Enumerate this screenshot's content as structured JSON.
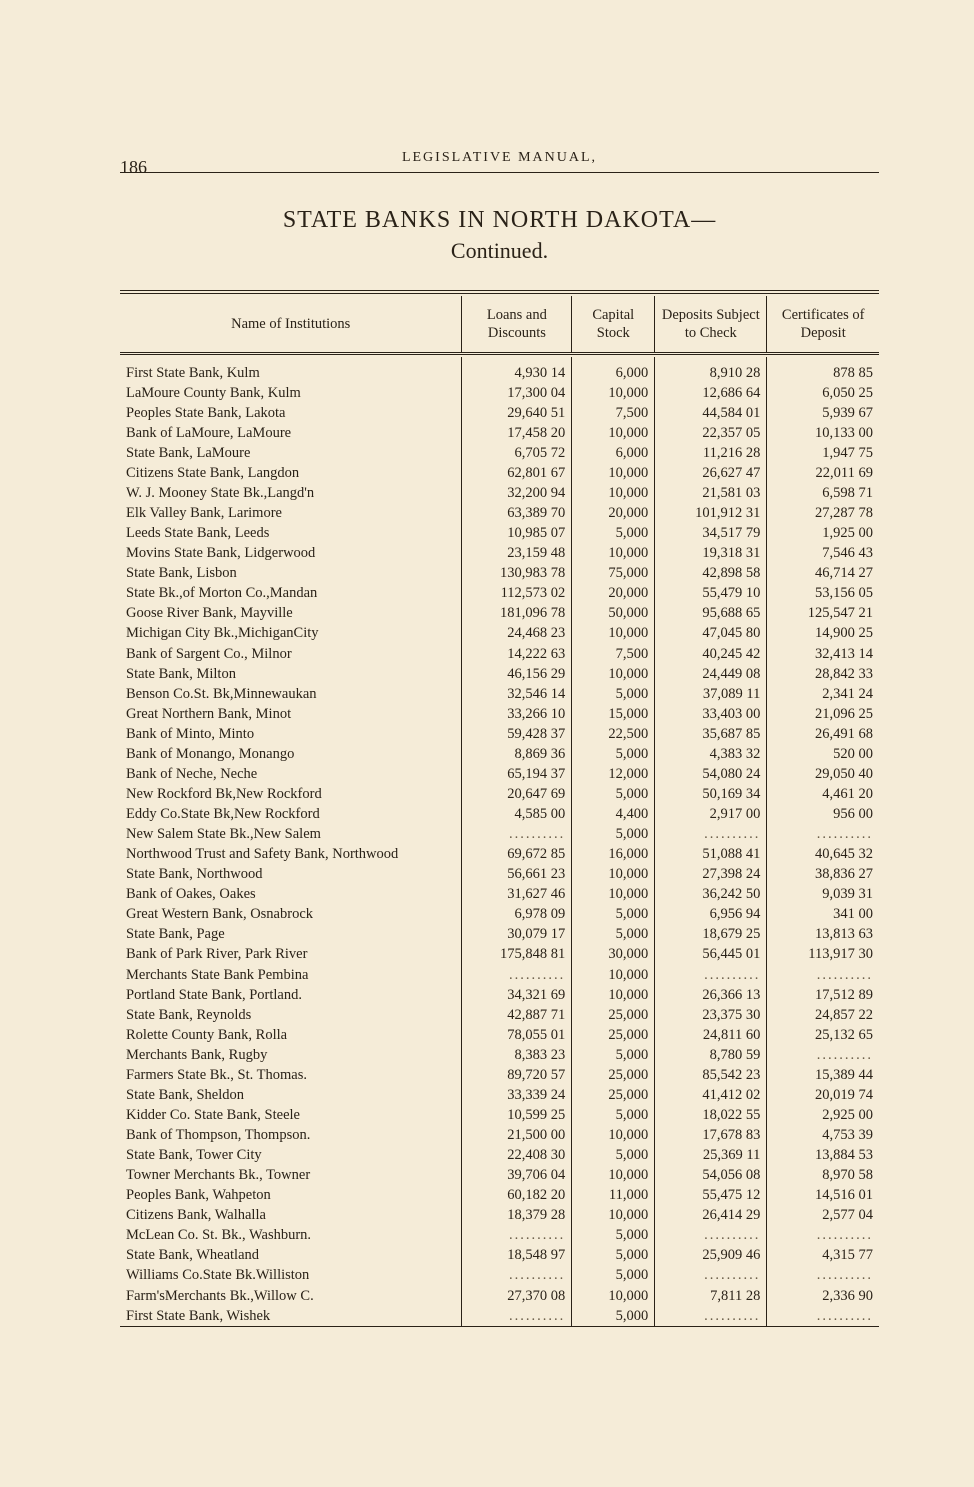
{
  "page_number": "186",
  "running_head": "LEGISLATIVE MANUAL,",
  "title": "STATE BANKS IN NORTH DAKOTA—",
  "subtitle": "Continued.",
  "columns": {
    "name": "Name of Institutions",
    "loans": "Loans and Discounts",
    "capital": "Capital Stock",
    "deposits": "Deposits Subject to Check",
    "certificates": "Certificates of Deposit"
  },
  "rows": [
    {
      "name": "First State Bank, Kulm",
      "loans": "4,930 14",
      "cap": "6,000",
      "dep": "8,910 28",
      "cert": "878 85"
    },
    {
      "name": "LaMoure County Bank, Kulm",
      "loans": "17,300 04",
      "cap": "10,000",
      "dep": "12,686 64",
      "cert": "6,050 25"
    },
    {
      "name": "Peoples State Bank, Lakota",
      "loans": "29,640 51",
      "cap": "7,500",
      "dep": "44,584 01",
      "cert": "5,939 67"
    },
    {
      "name": "Bank of LaMoure, LaMoure",
      "loans": "17,458 20",
      "cap": "10,000",
      "dep": "22,357 05",
      "cert": "10,133 00"
    },
    {
      "name": "State Bank, LaMoure",
      "loans": "6,705 72",
      "cap": "6,000",
      "dep": "11,216 28",
      "cert": "1,947 75"
    },
    {
      "name": "Citizens State Bank, Langdon",
      "loans": "62,801 67",
      "cap": "10,000",
      "dep": "26,627 47",
      "cert": "22,011 69"
    },
    {
      "name": "W. J. Mooney State Bk.,Langd'n",
      "loans": "32,200 94",
      "cap": "10,000",
      "dep": "21,581 03",
      "cert": "6,598 71"
    },
    {
      "name": "Elk Valley Bank, Larimore",
      "loans": "63,389 70",
      "cap": "20,000",
      "dep": "101,912 31",
      "cert": "27,287 78"
    },
    {
      "name": "Leeds State Bank, Leeds",
      "loans": "10,985 07",
      "cap": "5,000",
      "dep": "34,517 79",
      "cert": "1,925 00"
    },
    {
      "name": "Movins State Bank, Lidgerwood",
      "loans": "23,159 48",
      "cap": "10,000",
      "dep": "19,318 31",
      "cert": "7,546 43"
    },
    {
      "name": "State Bank, Lisbon",
      "loans": "130,983 78",
      "cap": "75,000",
      "dep": "42,898 58",
      "cert": "46,714 27"
    },
    {
      "name": "State Bk.,of Morton Co.,Mandan",
      "loans": "112,573 02",
      "cap": "20,000",
      "dep": "55,479 10",
      "cert": "53,156 05"
    },
    {
      "name": "Goose River Bank, Mayville",
      "loans": "181,096 78",
      "cap": "50,000",
      "dep": "95,688 65",
      "cert": "125,547 21"
    },
    {
      "name": "Michigan City Bk.,MichiganCity",
      "loans": "24,468 23",
      "cap": "10,000",
      "dep": "47,045 80",
      "cert": "14,900 25"
    },
    {
      "name": "Bank of Sargent Co., Milnor",
      "loans": "14,222 63",
      "cap": "7,500",
      "dep": "40,245 42",
      "cert": "32,413 14"
    },
    {
      "name": "State Bank, Milton",
      "loans": "46,156 29",
      "cap": "10,000",
      "dep": "24,449 08",
      "cert": "28,842 33"
    },
    {
      "name": "Benson Co.St. Bk,Minnewaukan",
      "loans": "32,546 14",
      "cap": "5,000",
      "dep": "37,089 11",
      "cert": "2,341 24"
    },
    {
      "name": "Great Northern Bank, Minot",
      "loans": "33,266 10",
      "cap": "15,000",
      "dep": "33,403 00",
      "cert": "21,096 25"
    },
    {
      "name": "Bank of Minto, Minto",
      "loans": "59,428 37",
      "cap": "22,500",
      "dep": "35,687 85",
      "cert": "26,491 68"
    },
    {
      "name": "Bank of Monango, Monango",
      "loans": "8,869 36",
      "cap": "5,000",
      "dep": "4,383 32",
      "cert": "520 00"
    },
    {
      "name": "Bank of Neche, Neche",
      "loans": "65,194 37",
      "cap": "12,000",
      "dep": "54,080 24",
      "cert": "29,050 40"
    },
    {
      "name": "New Rockford Bk,New Rockford",
      "loans": "20,647 69",
      "cap": "5,000",
      "dep": "50,169 34",
      "cert": "4,461 20"
    },
    {
      "name": "Eddy Co.State Bk,New Rockford",
      "loans": "4,585 00",
      "cap": "4,400",
      "dep": "2,917 00",
      "cert": "956 00"
    },
    {
      "name": "New Salem State Bk.,New Salem",
      "loans": "..........",
      "cap": "5,000",
      "dep": "..........",
      "cert": ".........."
    },
    {
      "name": "Northwood Trust and Safety Bank, Northwood",
      "indent": true,
      "loans": "69,672 85",
      "cap": "16,000",
      "dep": "51,088 41",
      "cert": "40,645 32"
    },
    {
      "name": "State Bank, Northwood",
      "loans": "56,661 23",
      "cap": "10,000",
      "dep": "27,398 24",
      "cert": "38,836 27"
    },
    {
      "name": "Bank of Oakes, Oakes",
      "loans": "31,627 46",
      "cap": "10,000",
      "dep": "36,242 50",
      "cert": "9,039 31"
    },
    {
      "name": "Great Western Bank, Osnabrock",
      "loans": "6,978 09",
      "cap": "5,000",
      "dep": "6,956 94",
      "cert": "341 00"
    },
    {
      "name": "State Bank, Page",
      "loans": "30,079 17",
      "cap": "5,000",
      "dep": "18,679 25",
      "cert": "13,813 63"
    },
    {
      "name": "Bank of Park River, Park River",
      "loans": "175,848 81",
      "cap": "30,000",
      "dep": "56,445 01",
      "cert": "113,917 30"
    },
    {
      "name": "Merchants State Bank Pembina",
      "loans": "..........",
      "cap": "10,000",
      "dep": "..........",
      "cert": ".........."
    },
    {
      "name": "Portland State Bank, Portland.",
      "loans": "34,321 69",
      "cap": "10,000",
      "dep": "26,366 13",
      "cert": "17,512 89"
    },
    {
      "name": "State Bank, Reynolds",
      "loans": "42,887 71",
      "cap": "25,000",
      "dep": "23,375 30",
      "cert": "24,857 22"
    },
    {
      "name": "Rolette County Bank, Rolla",
      "loans": "78,055 01",
      "cap": "25,000",
      "dep": "24,811 60",
      "cert": "25,132 65"
    },
    {
      "name": "Merchants Bank, Rugby",
      "loans": "8,383 23",
      "cap": "5,000",
      "dep": "8,780 59",
      "cert": ".........."
    },
    {
      "name": "Farmers State Bk., St. Thomas.",
      "loans": "89,720 57",
      "cap": "25,000",
      "dep": "85,542 23",
      "cert": "15,389 44"
    },
    {
      "name": "State Bank, Sheldon",
      "loans": "33,339 24",
      "cap": "25,000",
      "dep": "41,412 02",
      "cert": "20,019 74"
    },
    {
      "name": "Kidder Co. State Bank, Steele",
      "loans": "10,599 25",
      "cap": "5,000",
      "dep": "18,022 55",
      "cert": "2,925 00"
    },
    {
      "name": "Bank of Thompson, Thompson.",
      "loans": "21,500 00",
      "cap": "10,000",
      "dep": "17,678 83",
      "cert": "4,753 39"
    },
    {
      "name": "State Bank, Tower City",
      "loans": "22,408 30",
      "cap": "5,000",
      "dep": "25,369 11",
      "cert": "13,884 53"
    },
    {
      "name": "Towner Merchants Bk., Towner",
      "loans": "39,706 04",
      "cap": "10,000",
      "dep": "54,056 08",
      "cert": "8,970 58"
    },
    {
      "name": "Peoples Bank, Wahpeton",
      "loans": "60,182 20",
      "cap": "11,000",
      "dep": "55,475 12",
      "cert": "14,516 01"
    },
    {
      "name": "Citizens Bank, Walhalla",
      "loans": "18,379 28",
      "cap": "10,000",
      "dep": "26,414 29",
      "cert": "2,577 04"
    },
    {
      "name": "McLean Co. St. Bk., Washburn.",
      "loans": "..........",
      "cap": "5,000",
      "dep": "..........",
      "cert": ".........."
    },
    {
      "name": "State Bank, Wheatland",
      "loans": "18,548 97",
      "cap": "5,000",
      "dep": "25,909 46",
      "cert": "4,315 77"
    },
    {
      "name": "Williams Co.State Bk.Williston",
      "loans": "..........",
      "cap": "5,000",
      "dep": "..........",
      "cert": ".........."
    },
    {
      "name": "Farm'sMerchants Bk.,Willow C.",
      "loans": "27,370 08",
      "cap": "10,000",
      "dep": "7,811 28",
      "cert": "2,336 90"
    },
    {
      "name": "First State Bank, Wishek",
      "loans": "..........",
      "cap": "5,000",
      "dep": "..........",
      "cert": ".........."
    }
  ]
}
